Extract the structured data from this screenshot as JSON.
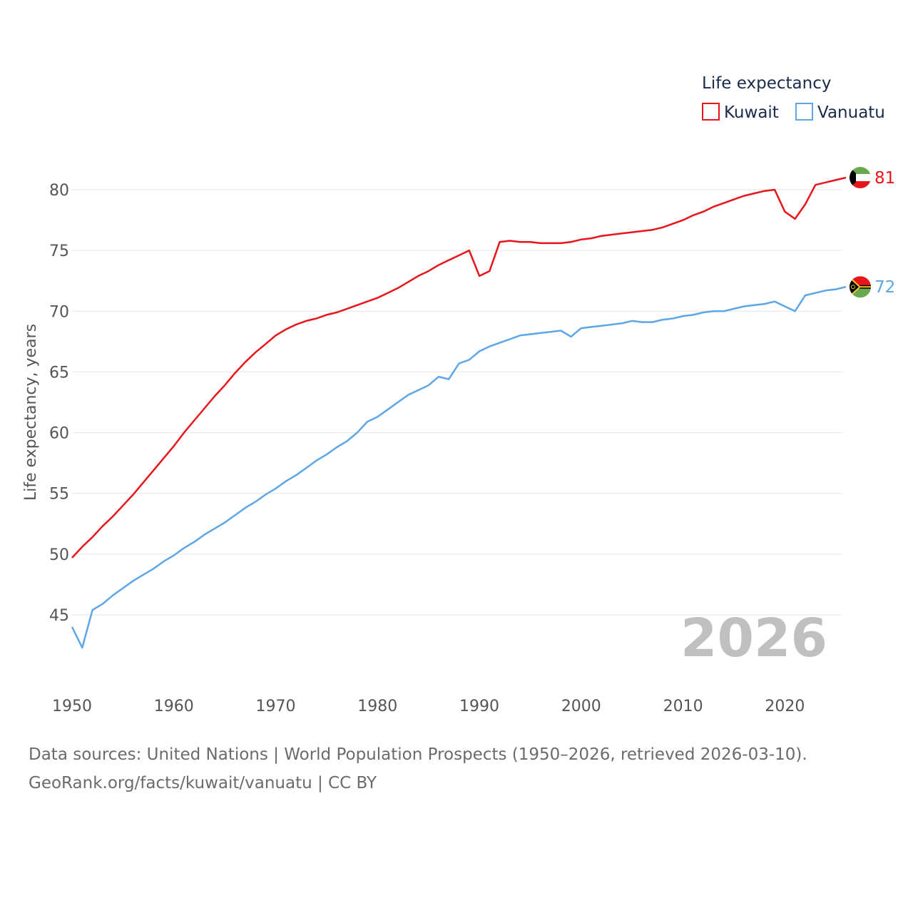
{
  "chart_data": {
    "type": "line",
    "ylabel": "Life expectancy, years",
    "xlabel": "",
    "legend_title": "Life expectancy",
    "legend_position": "top-right",
    "ylim": [
      41.5,
      82.5
    ],
    "xlim": [
      1950,
      2026
    ],
    "y_ticks": [
      45,
      50,
      55,
      60,
      65,
      70,
      75,
      80
    ],
    "x_ticks": [
      1950,
      1960,
      1970,
      1980,
      1990,
      2000,
      2010,
      2020
    ],
    "current_year_label": "2026",
    "series": [
      {
        "name": "Kuwait",
        "color": "#e8151b",
        "end_label": "81",
        "flag": "kuwait-flag",
        "x": [
          1950,
          1951,
          1952,
          1953,
          1954,
          1955,
          1956,
          1957,
          1958,
          1959,
          1960,
          1961,
          1962,
          1963,
          1964,
          1965,
          1966,
          1967,
          1968,
          1969,
          1970,
          1971,
          1972,
          1973,
          1974,
          1975,
          1976,
          1977,
          1978,
          1979,
          1980,
          1981,
          1982,
          1983,
          1984,
          1985,
          1986,
          1987,
          1988,
          1989,
          1990,
          1991,
          1992,
          1993,
          1994,
          1995,
          1996,
          1997,
          1998,
          1999,
          2000,
          2001,
          2002,
          2003,
          2004,
          2005,
          2006,
          2007,
          2008,
          2009,
          2010,
          2011,
          2012,
          2013,
          2014,
          2015,
          2016,
          2017,
          2018,
          2019,
          2020,
          2021,
          2022,
          2023,
          2024,
          2025,
          2026
        ],
        "values": [
          49.7,
          50.6,
          51.4,
          52.3,
          53.1,
          54.0,
          54.9,
          55.9,
          56.9,
          57.9,
          58.9,
          60.0,
          61.0,
          62.0,
          63.0,
          63.9,
          64.9,
          65.8,
          66.6,
          67.3,
          68.0,
          68.5,
          68.9,
          69.2,
          69.4,
          69.7,
          69.9,
          70.2,
          70.5,
          70.8,
          71.1,
          71.5,
          71.9,
          72.4,
          72.9,
          73.3,
          73.8,
          74.2,
          74.6,
          75.0,
          72.9,
          73.3,
          75.7,
          75.8,
          75.7,
          75.7,
          75.6,
          75.6,
          75.6,
          75.7,
          75.9,
          76.0,
          76.2,
          76.3,
          76.4,
          76.5,
          76.6,
          76.7,
          76.9,
          77.2,
          77.5,
          77.9,
          78.2,
          78.6,
          78.9,
          79.2,
          79.5,
          79.7,
          79.9,
          80.0,
          78.2,
          77.6,
          78.8,
          80.4,
          80.6,
          80.8,
          81.0
        ]
      },
      {
        "name": "Vanuatu",
        "color": "#5ea6e6",
        "end_label": "72",
        "flag": "vanuatu-flag",
        "x": [
          1950,
          1951,
          1952,
          1953,
          1954,
          1955,
          1956,
          1957,
          1958,
          1959,
          1960,
          1961,
          1962,
          1963,
          1964,
          1965,
          1966,
          1967,
          1968,
          1969,
          1970,
          1971,
          1972,
          1973,
          1974,
          1975,
          1976,
          1977,
          1978,
          1979,
          1980,
          1981,
          1982,
          1983,
          1984,
          1985,
          1986,
          1987,
          1988,
          1989,
          1990,
          1991,
          1992,
          1993,
          1994,
          1995,
          1996,
          1997,
          1998,
          1999,
          2000,
          2001,
          2002,
          2003,
          2004,
          2005,
          2006,
          2007,
          2008,
          2009,
          2010,
          2011,
          2012,
          2013,
          2014,
          2015,
          2016,
          2017,
          2018,
          2019,
          2020,
          2021,
          2022,
          2023,
          2024,
          2025,
          2026
        ],
        "values": [
          44.0,
          42.3,
          45.4,
          45.9,
          46.6,
          47.2,
          47.8,
          48.3,
          48.8,
          49.4,
          49.9,
          50.5,
          51.0,
          51.6,
          52.1,
          52.6,
          53.2,
          53.8,
          54.3,
          54.9,
          55.4,
          56.0,
          56.5,
          57.1,
          57.7,
          58.2,
          58.8,
          59.3,
          60.0,
          60.9,
          61.3,
          61.9,
          62.5,
          63.1,
          63.5,
          63.9,
          64.6,
          64.4,
          65.7,
          66.0,
          66.7,
          67.1,
          67.4,
          67.7,
          68.0,
          68.1,
          68.2,
          68.3,
          68.4,
          67.9,
          68.6,
          68.7,
          68.8,
          68.9,
          69.0,
          69.2,
          69.1,
          69.1,
          69.3,
          69.4,
          69.6,
          69.7,
          69.9,
          70.0,
          70.0,
          70.2,
          70.4,
          70.5,
          70.6,
          70.8,
          70.4,
          70.0,
          71.3,
          71.5,
          71.7,
          71.8,
          72.0
        ]
      }
    ]
  },
  "footer": {
    "sources": "Data sources: United Nations | World Population Prospects (1950–2026, retrieved 2026-03-10).",
    "attribution": "GeoRank.org/facts/kuwait/vanuatu | CC BY"
  }
}
